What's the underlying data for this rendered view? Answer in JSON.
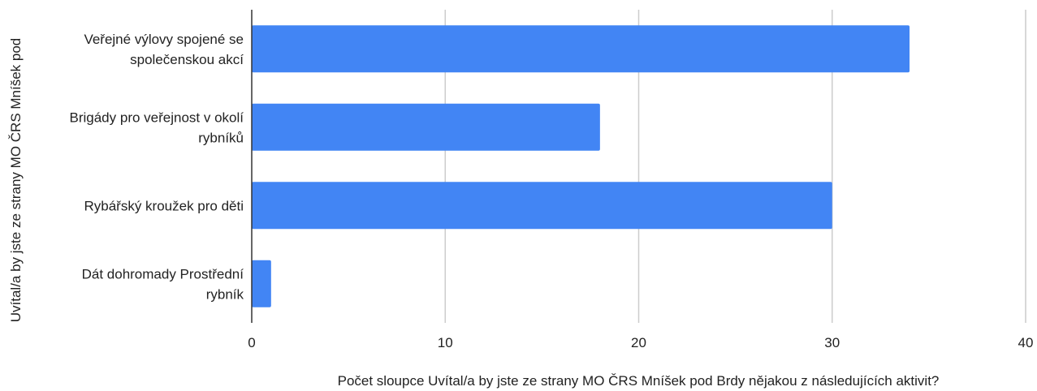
{
  "chart_data": {
    "type": "bar",
    "orientation": "horizontal",
    "categories": [
      [
        "Veřejné výlovy spojené se",
        "společenskou akcí"
      ],
      [
        "Brigády pro veřejnost v okolí",
        "rybníků"
      ],
      [
        "Rybářský kroužek pro děti"
      ],
      [
        "Dát dohromady Prostřední",
        "rybník"
      ]
    ],
    "values": [
      34,
      18,
      30,
      1
    ],
    "xlim": [
      0,
      40
    ],
    "xticks": [
      0,
      10,
      20,
      30,
      40
    ],
    "xlabel": "Počet sloupce Uvítal/a by jste ze strany MO ČRS Mníšek pod Brdy nějakou z následujících aktivit?",
    "ylabel": "Uvítal/a by jste ze strany MO ČRS Mníšek pod",
    "grid": true,
    "legend": "none",
    "colors": {
      "bar": "#4285f4",
      "grid": "#cccccc",
      "axis": "#333333",
      "text": "#222222"
    }
  }
}
